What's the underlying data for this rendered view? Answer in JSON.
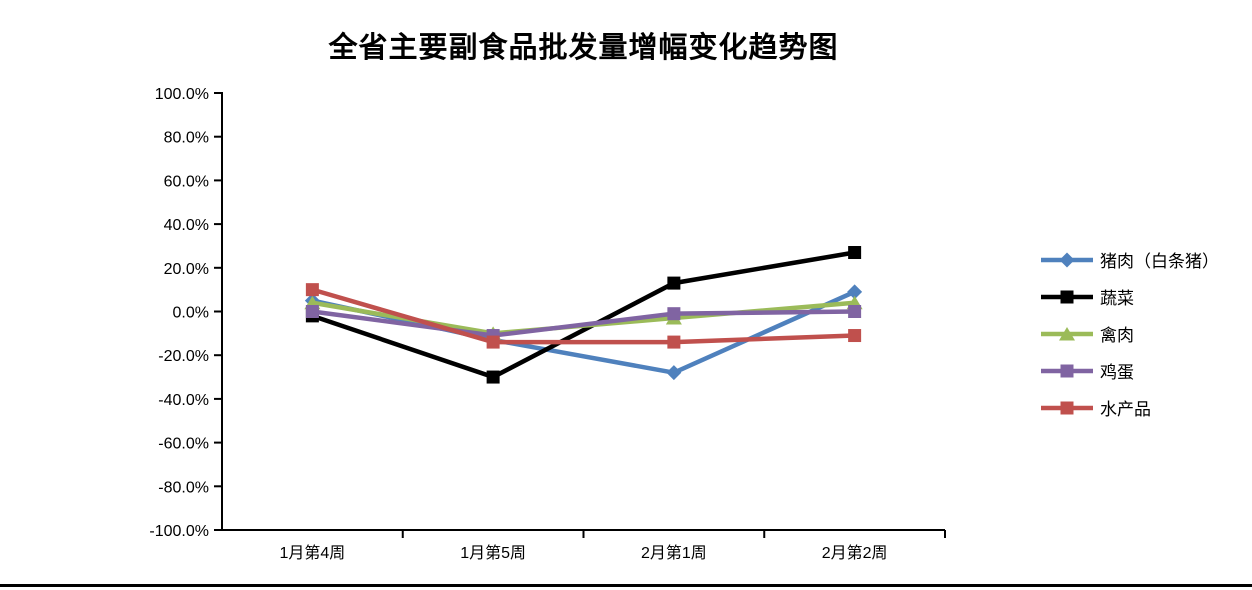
{
  "chart_data": {
    "type": "line",
    "title": "全省主要副食品批发量增幅变化趋势图",
    "categories": [
      "1月第4周",
      "1月第5周",
      "2月第1周",
      "2月第2周"
    ],
    "series": [
      {
        "name": "猪肉（白条猪）",
        "color": "#4F81BD",
        "marker": "diamond",
        "values": [
          5,
          -13,
          -28,
          9
        ]
      },
      {
        "name": "蔬菜",
        "color": "#000000",
        "marker": "square",
        "values": [
          -2,
          -30,
          13,
          27
        ]
      },
      {
        "name": "禽肉",
        "color": "#9BBB59",
        "marker": "triangle",
        "values": [
          4,
          -10,
          -3,
          4
        ]
      },
      {
        "name": "鸡蛋",
        "color": "#8064A2",
        "marker": "square",
        "values": [
          0,
          -11,
          -1,
          0
        ]
      },
      {
        "name": "水产品",
        "color": "#C0504D",
        "marker": "square",
        "values": [
          10,
          -14,
          -14,
          -11
        ]
      }
    ],
    "ylim": [
      -100,
      100
    ],
    "ytick_step": 20,
    "ytick_labels": [
      "100.0%",
      "80.0%",
      "60.0%",
      "40.0%",
      "20.0%",
      "0.0%",
      "-20.0%",
      "-40.0%",
      "-60.0%",
      "-80.0%",
      "-100.0%"
    ],
    "xlabel": "",
    "ylabel": "",
    "grid": false,
    "legend_position": "right",
    "axis_color": "#000000",
    "background_color": "#FFFFFF"
  },
  "page": {
    "bottom_rule_color": "#000000"
  }
}
